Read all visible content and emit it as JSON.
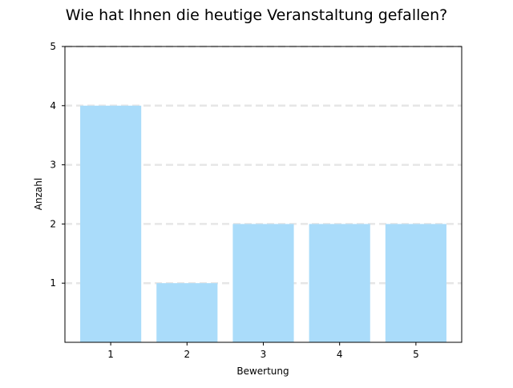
{
  "chart_data": {
    "type": "bar",
    "title": "Wie hat Ihnen die heutige Veranstaltung gefallen?",
    "xlabel": "Bewertung",
    "ylabel": "Anzahl",
    "categories": [
      "1",
      "2",
      "3",
      "4",
      "5"
    ],
    "values": [
      4,
      1,
      2,
      2,
      2
    ],
    "ylim": [
      0,
      5
    ],
    "yticks": [
      1,
      2,
      3,
      4,
      5
    ],
    "grid": "horizontal dashed",
    "legend": "none",
    "colors": {
      "bar": "#aadcfa",
      "grid": "#e6e6e6",
      "axes": "#000000"
    }
  }
}
